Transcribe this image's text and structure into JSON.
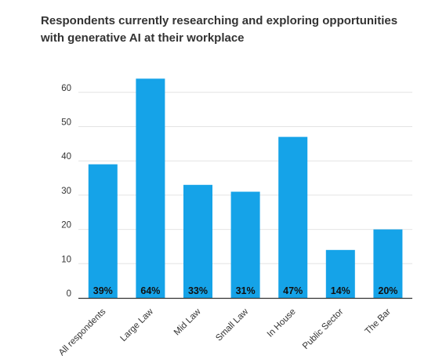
{
  "chart_data": {
    "type": "bar",
    "title": "Respondents currently researching and exploring opportunities with generative AI at their workplace",
    "categories": [
      "All respondents",
      "Large Law",
      "Mid Law",
      "Small Law",
      "In House",
      "Public Sector",
      "The Bar"
    ],
    "values": [
      39,
      64,
      33,
      31,
      47,
      14,
      20
    ],
    "data_labels": [
      "39%",
      "64%",
      "33%",
      "31%",
      "47%",
      "14%",
      "20%"
    ],
    "yticks": [
      0,
      10,
      20,
      30,
      40,
      50,
      60
    ],
    "ylim": [
      0,
      65
    ],
    "xlabel": "",
    "ylabel": "",
    "grid": true,
    "legend": "none",
    "bar_color": "#15a3e8",
    "grid_color": "#e4e4e4",
    "axis_color": "#333333"
  }
}
